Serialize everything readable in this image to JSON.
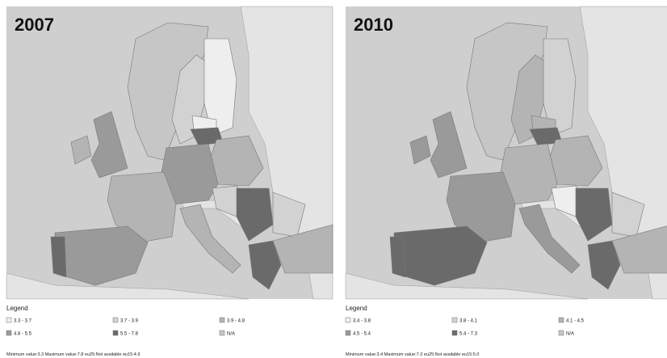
{
  "panels": [
    {
      "year": "2007",
      "legend_title": "Legend",
      "legend": [
        {
          "label": "3.3 - 3.7",
          "color": "#eeeeee"
        },
        {
          "label": "3.7 - 3.9",
          "color": "#d2d2d2"
        },
        {
          "label": "3.9 - 4.8",
          "color": "#b4b4b4"
        },
        {
          "label": "4.8 - 5.5",
          "color": "#9a9a9a"
        },
        {
          "label": "5.5 - 7.8",
          "color": "#6a6a6a"
        },
        {
          "label": "N/A",
          "color": "#c6c6c6"
        }
      ],
      "footnote": "Minimum value:3.3 Maximum value:7.8 eu25:Not available eu15:4.9"
    },
    {
      "year": "2010",
      "legend_title": "Legend",
      "legend": [
        {
          "label": "3.4 - 3.8",
          "color": "#eeeeee"
        },
        {
          "label": "3.8 - 4.1",
          "color": "#d2d2d2"
        },
        {
          "label": "4.1 - 4.5",
          "color": "#b4b4b4"
        },
        {
          "label": "4.5 - 5.4",
          "color": "#9a9a9a"
        },
        {
          "label": "5.4 - 7.3",
          "color": "#6a6a6a"
        },
        {
          "label": "N/A",
          "color": "#c6c6c6"
        }
      ],
      "footnote": "Minimum value:3.4 Maximum value:7.3 eu25:Not available eu15:5.0"
    }
  ]
}
